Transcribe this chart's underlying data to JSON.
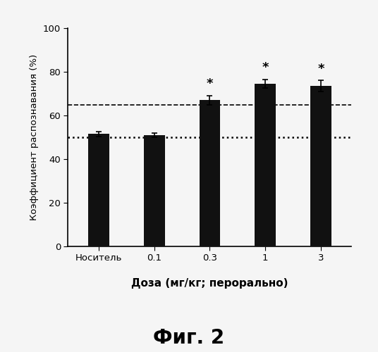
{
  "categories": [
    "Носитель",
    "0.1",
    "0.3",
    "1",
    "3"
  ],
  "values": [
    51.5,
    51.0,
    67.0,
    74.5,
    73.5
  ],
  "errors": [
    1.2,
    1.0,
    2.0,
    2.0,
    2.5
  ],
  "bar_color": "#111111",
  "dashed_line_y": 65.0,
  "dotted_line_y": 50.0,
  "star_indices": [
    2,
    3,
    4
  ],
  "ylabel": "Коэффициент распознавания (%)",
  "xlabel": "Доза (мг/кг; перорально)",
  "figure_label": "Фиг. 2",
  "ylim": [
    0,
    100
  ],
  "yticks": [
    0,
    20,
    40,
    60,
    80,
    100
  ],
  "background_color": "#f5f5f5"
}
